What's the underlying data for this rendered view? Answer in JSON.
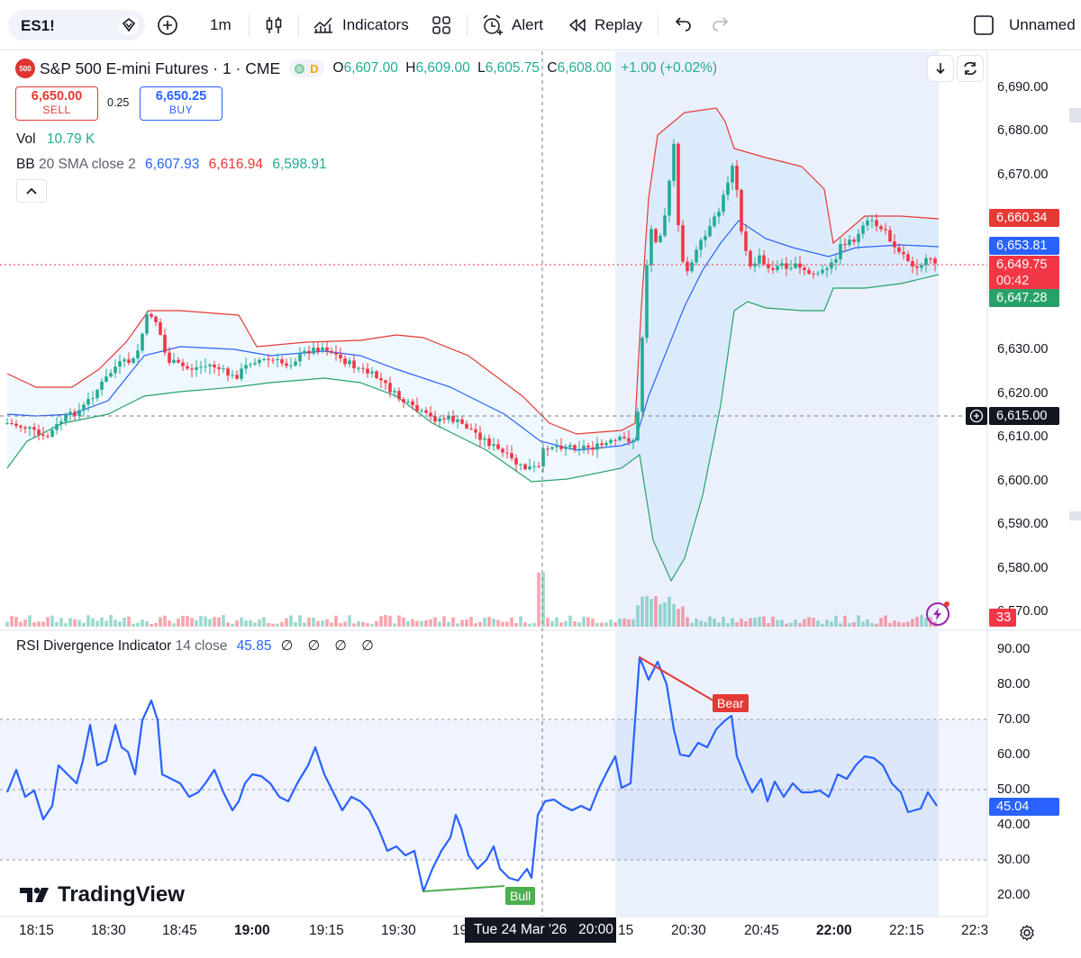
{
  "toolbar": {
    "symbol": "ES1!",
    "interval": "1m",
    "indicators_label": "Indicators",
    "alert_label": "Alert",
    "replay_label": "Replay",
    "layout_name": "Unnamed"
  },
  "legend": {
    "title": "S&P 500 E-mini Futures · 1 · CME",
    "logo_text": "500",
    "flag_letter": "D",
    "open_label": "O",
    "open": "6,607.00",
    "high_label": "H",
    "high": "6,609.00",
    "low_label": "L",
    "low": "6,605.75",
    "close_label": "C",
    "close": "6,608.00",
    "change": "+1.00 (+0.02%)"
  },
  "trade": {
    "sell_price": "6,650.00",
    "sell_label": "SELL",
    "spread": "0.25",
    "buy_price": "6,650.25",
    "buy_label": "BUY"
  },
  "volume": {
    "label": "Vol",
    "value": "10.79 K"
  },
  "bb": {
    "label": "BB",
    "params": "20 SMA close 2",
    "basis": "6,607.93",
    "upper": "6,616.94",
    "lower": "6,598.91"
  },
  "rsi": {
    "label": "RSI Divergence Indicator",
    "params": "14 close",
    "value": "45.85",
    "extras": "∅ ∅ ∅ ∅",
    "bull_label": "Bull",
    "bear_label": "Bear"
  },
  "price_axis": {
    "labels": [
      "6,690.00",
      "6,680.00",
      "6,670.00",
      "6,630.00",
      "6,620.00",
      "6,610.00",
      "6,600.00",
      "6,590.00",
      "6,580.00",
      "6,570.00"
    ],
    "tag_upper": "6,660.34",
    "tag_basis": "6,653.81",
    "tag_last": "6,649.75",
    "tag_countdown": "00:42",
    "tag_lower": "6,647.28",
    "tag_cross": "6,615.00",
    "tag_vol": "33"
  },
  "rsi_axis": {
    "labels": [
      "90.00",
      "80.00",
      "70.00",
      "60.00",
      "50.00",
      "40.00",
      "30.00",
      "20.00"
    ],
    "tag_value": "45.04"
  },
  "time_axis": {
    "labels": [
      "18:15",
      "18:30",
      "18:45",
      "19:00",
      "19:15",
      "19:30",
      "19",
      "15",
      "20:30",
      "20:45",
      "22:00",
      "22:15",
      "22:3"
    ],
    "crosshair": "Tue 24 Mar '26   20:00"
  },
  "brand": {
    "name": "TradingView"
  },
  "colors": {
    "up": "#22ab94",
    "down": "#f23645",
    "basis": "#2962ff",
    "upper": "#e53935",
    "lower": "#26a269",
    "rsi": "#2962ff"
  }
}
